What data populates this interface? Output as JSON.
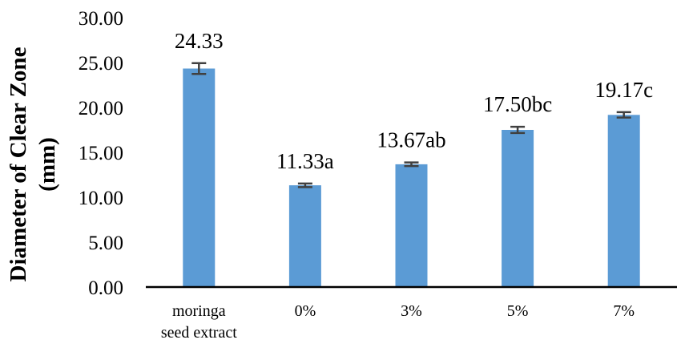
{
  "chart_data": {
    "type": "bar",
    "ylabel_lines": [
      "Diameter of Clear Zone",
      "(mm)"
    ],
    "xlabel": "",
    "ylim": [
      0,
      30
    ],
    "yticks": [
      "0.00",
      "5.00",
      "10.00",
      "15.00",
      "20.00",
      "25.00",
      "30.00"
    ],
    "categories": [
      [
        "moringa",
        "seed extract"
      ],
      [
        "0%"
      ],
      [
        "3%"
      ],
      [
        "5%"
      ],
      [
        "7%"
      ]
    ],
    "values": [
      24.33,
      11.33,
      13.67,
      17.5,
      19.17
    ],
    "errors": [
      0.6,
      0.2,
      0.2,
      0.35,
      0.3
    ],
    "data_labels": [
      "24.33",
      "11.33a",
      "13.67ab",
      "17.50bc",
      "19.17c"
    ],
    "bar_color": "#5b9bd5",
    "error_color": "#404040",
    "grid": false,
    "legend": "none"
  }
}
